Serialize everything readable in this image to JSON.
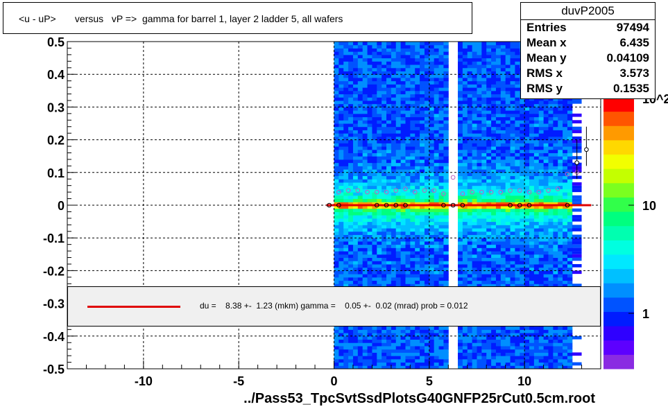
{
  "title": "<u - uP>       versus   vP =>  gamma for barrel 1, layer 2 ladder 5, all wafers",
  "stats": {
    "name": "duvP2005",
    "rows": [
      {
        "label": "Entries",
        "value": "97494"
      },
      {
        "label": "Mean x",
        "value": "6.435"
      },
      {
        "label": "Mean y",
        "value": "0.04109"
      },
      {
        "label": "RMS x",
        "value": "3.573"
      },
      {
        "label": "RMS y",
        "value": "0.1535"
      }
    ]
  },
  "fit": {
    "text": "du =    8.38 +-  1.23 (mkm) gamma =    0.05 +-  0.02 (mrad) prob = 0.012",
    "line_color": "#e00000"
  },
  "x_axis_title": "../Pass53_TpcSvtSsdPlotsG40GNFP25rCut0.5cm.root",
  "palette": {
    "labels": [
      "1",
      "10",
      "10^2"
    ],
    "colors": [
      "#8a2be2",
      "#5d00ff",
      "#2f00ff",
      "#001cff",
      "#0053ff",
      "#008fff",
      "#00c0ff",
      "#00e8ff",
      "#00ffe0",
      "#00ffb0",
      "#00ff7f",
      "#31ff4a",
      "#7bff1f",
      "#c4ff00",
      "#f2ff00",
      "#ffd800",
      "#ff9a00",
      "#ff5500",
      "#ff0000"
    ]
  },
  "chart_data": {
    "type": "heatmap",
    "xlim": [
      -14,
      14
    ],
    "ylim": [
      -0.5,
      0.5
    ],
    "x_ticks": [
      -10,
      -5,
      0,
      5,
      10
    ],
    "y_ticks": [
      -0.5,
      -0.4,
      -0.3,
      -0.2,
      -0.1,
      0,
      0.1,
      0.2,
      0.3,
      0.4,
      0.5
    ],
    "grid": true,
    "z_scale": "log",
    "filled_x_range": [
      0,
      12.5
    ],
    "sparse_x_range": [
      12.5,
      13
    ],
    "gap_x": [
      6.1,
      6.5
    ],
    "profile_mean_points": {
      "x": [
        0.25,
        0.75,
        1.25,
        1.75,
        2.25,
        2.75,
        3.25,
        3.75,
        4.25,
        4.75,
        5.25,
        5.75,
        6.25,
        6.75,
        7.25,
        7.75,
        8.25,
        8.75,
        9.25,
        9.75,
        10.25,
        10.75,
        11.25,
        11.75,
        12.25,
        12.75
      ],
      "y": [
        0.04,
        0.045,
        0.045,
        0.04,
        0.04,
        0.04,
        0.045,
        0.05,
        0.04,
        0.045,
        0.045,
        0.035,
        0.085,
        0.035,
        0.04,
        0.04,
        0.04,
        0.04,
        0.045,
        0.045,
        0.04,
        0.04,
        0.045,
        0.05,
        0.095,
        0.1
      ]
    },
    "profile_zero_points": {
      "x": [
        -0.25,
        0.25,
        2.25,
        2.75,
        3.25,
        3.75,
        5.75,
        6.25,
        6.75,
        9.25,
        9.75,
        10.25,
        12.25
      ],
      "y": [
        0,
        0,
        0,
        0,
        0,
        0,
        0,
        0,
        0,
        0,
        0,
        0,
        0
      ]
    },
    "outlier_points": {
      "x": [
        12.75,
        13.25
      ],
      "y": [
        0.13,
        0.17
      ]
    },
    "fit_line": {
      "x": [
        -0.4,
        13.5
      ],
      "y": [
        0.0,
        0.0
      ]
    }
  }
}
